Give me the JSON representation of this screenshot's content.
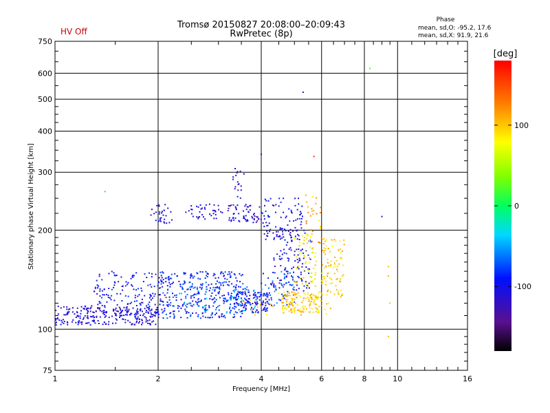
{
  "header": {
    "title": "Tromsø 20150827 20:08:00–20:09:43",
    "subtitle": "RwPretec (8p)",
    "hv_status": "HV Off",
    "phase_title": "Phase",
    "phase_line_o": "mean, sd,O:  -95.2, 17.6",
    "phase_line_x": "mean, sd,X:  91.9, 21.6"
  },
  "colorbar": {
    "label": "[deg]",
    "ticks": [
      "100",
      "0",
      "-100"
    ],
    "tick_values": [
      100,
      0,
      -100
    ],
    "range": [
      -180,
      180
    ]
  },
  "chart_data": {
    "type": "scatter",
    "xlabel": "Frequency [MHz]",
    "ylabel": "Stationary phase Virtual Height [km]",
    "x_scale": "log",
    "y_scale": "log",
    "xlim": [
      1,
      16
    ],
    "ylim": [
      75,
      750
    ],
    "x_ticks": [
      1,
      2,
      4,
      6,
      8,
      10,
      16
    ],
    "x_tick_labels": [
      "1",
      "2",
      "4",
      "6",
      "8",
      "10",
      "16"
    ],
    "y_ticks": [
      75,
      100,
      200,
      300,
      400,
      500,
      600,
      750
    ],
    "y_tick_labels": [
      "75",
      "100",
      "200",
      "300",
      "400",
      "500",
      "600",
      "750"
    ],
    "grid": true,
    "color_scale": "phase [deg], -180 to 180",
    "clusters": [
      {
        "x_range": [
          1.0,
          2.0
        ],
        "y_range": [
          103,
          118
        ],
        "phase": -110,
        "count": 260
      },
      {
        "x_range": [
          1.3,
          2.1
        ],
        "y_range": [
          112,
          150
        ],
        "phase": -100,
        "count": 140
      },
      {
        "x_range": [
          2.0,
          3.6
        ],
        "y_range": [
          108,
          150
        ],
        "phase": -90,
        "count": 330
      },
      {
        "x_range": [
          2.3,
          3.9
        ],
        "y_range": [
          112,
          135
        ],
        "phase": -60,
        "count": 90
      },
      {
        "x_range": [
          3.3,
          4.2
        ],
        "y_range": [
          112,
          130
        ],
        "phase": -100,
        "count": 110
      },
      {
        "x_range": [
          1.9,
          2.2
        ],
        "y_range": [
          210,
          240
        ],
        "phase": -110,
        "count": 30
      },
      {
        "x_range": [
          2.4,
          3.1
        ],
        "y_range": [
          215,
          240
        ],
        "phase": -110,
        "count": 40
      },
      {
        "x_range": [
          3.2,
          4.0
        ],
        "y_range": [
          210,
          240
        ],
        "phase": -115,
        "count": 60
      },
      {
        "x_range": [
          3.3,
          3.6
        ],
        "y_range": [
          250,
          310
        ],
        "phase": -110,
        "count": 18
      },
      {
        "x_range": [
          4.0,
          5.3
        ],
        "y_range": [
          185,
          250
        ],
        "phase": -105,
        "count": 90
      },
      {
        "x_range": [
          4.3,
          5.6
        ],
        "y_range": [
          130,
          200
        ],
        "phase": -105,
        "count": 120
      },
      {
        "x_range": [
          4.0,
          5.0
        ],
        "y_range": [
          118,
          150
        ],
        "phase": -80,
        "count": 60
      },
      {
        "x_range": [
          4.6,
          6.0
        ],
        "y_range": [
          112,
          130
        ],
        "phase": 100,
        "count": 140
      },
      {
        "x_range": [
          5.0,
          5.8
        ],
        "y_range": [
          135,
          200
        ],
        "phase": 85,
        "count": 60
      },
      {
        "x_range": [
          5.4,
          6.0
        ],
        "y_range": [
          180,
          260
        ],
        "phase": 110,
        "count": 30
      },
      {
        "x_range": [
          6.0,
          7.0
        ],
        "y_range": [
          125,
          190
        ],
        "phase": 95,
        "count": 90
      },
      {
        "x_range": [
          3.5,
          6.8
        ],
        "y_range": [
          110,
          130
        ],
        "phase": 90,
        "count": 30
      }
    ],
    "points": [
      {
        "x": 1.4,
        "y": 262,
        "phase": -10
      },
      {
        "x": 4.0,
        "y": 340,
        "phase": -110
      },
      {
        "x": 5.3,
        "y": 525,
        "phase": -110
      },
      {
        "x": 5.7,
        "y": 335,
        "phase": 160
      },
      {
        "x": 8.3,
        "y": 620,
        "phase": 20
      },
      {
        "x": 9.0,
        "y": 220,
        "phase": -110
      },
      {
        "x": 9.4,
        "y": 155,
        "phase": 105
      },
      {
        "x": 9.4,
        "y": 145,
        "phase": 105
      },
      {
        "x": 9.5,
        "y": 120,
        "phase": 105
      },
      {
        "x": 9.4,
        "y": 95,
        "phase": 105
      },
      {
        "x": 6.8,
        "y": 175,
        "phase": 100
      },
      {
        "x": 1.35,
        "y": 120,
        "phase": -70
      },
      {
        "x": 2.1,
        "y": 125,
        "phase": 110
      }
    ]
  }
}
